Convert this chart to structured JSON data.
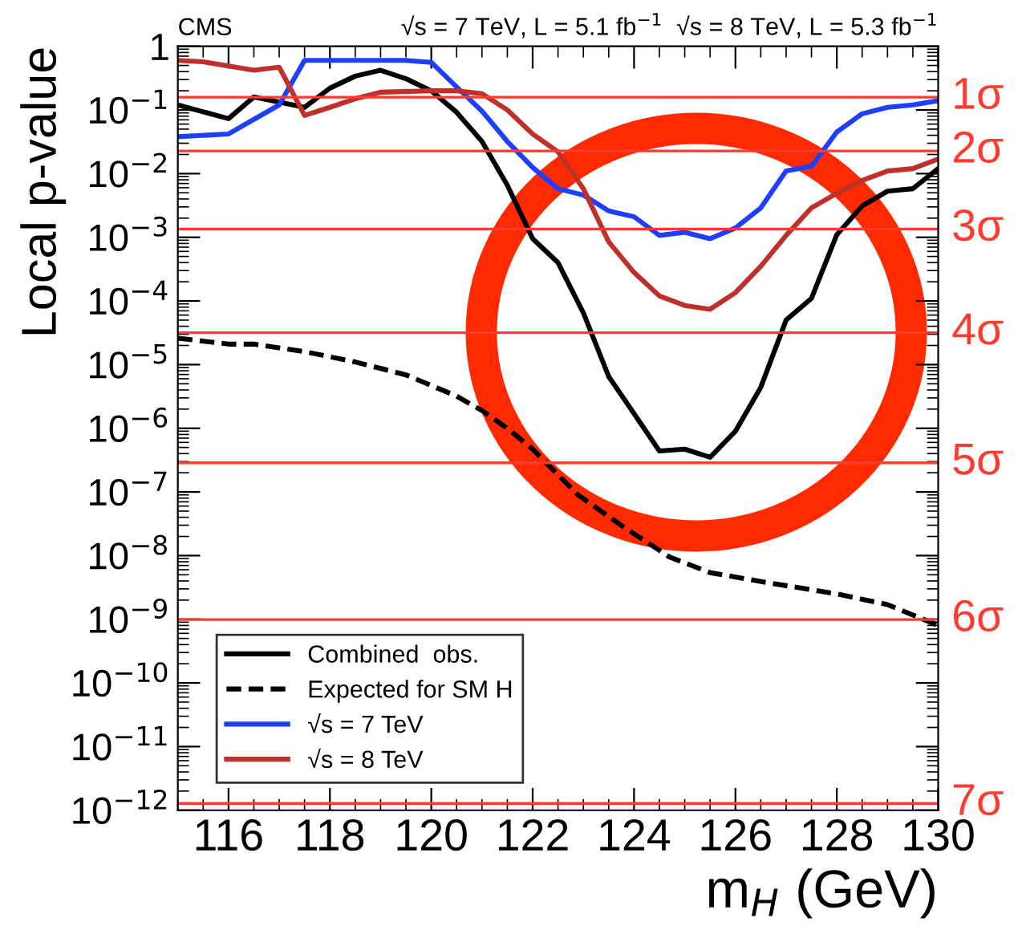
{
  "chart_data": {
    "type": "line",
    "title": "CMS",
    "subtitle": "√s = 7 TeV, L = 5.1 fb$^{−1}$  √s = 8 TeV, L = 5.3 fb$^{−1}$",
    "xlabel": "m$_{H}$ (GeV)",
    "ylabel": "Local p-value",
    "log": "y",
    "grid": false,
    "legend": "bottom left",
    "xlim": [
      115,
      130
    ],
    "xticks": [
      116,
      118,
      120,
      122,
      124,
      126,
      128,
      130
    ],
    "ylim": [
      1e-12,
      1
    ],
    "yticks": [
      1,
      {
        "value": 0.1,
        "label": "10$^{−1}$"
      },
      {
        "value": 0.01,
        "label": "10$^{−2}$"
      },
      {
        "value": 0.001,
        "label": "10$^{−3}$"
      },
      {
        "value": 0.0001,
        "label": "10$^{−4}$"
      },
      {
        "value": 1e-05,
        "label": "10$^{−5}$"
      },
      {
        "value": 1e-06,
        "label": "10$^{−6}$"
      },
      {
        "value": 1e-07,
        "label": "10$^{−7}$"
      },
      {
        "value": 1e-08,
        "label": "10$^{−8}$"
      },
      {
        "value": 1e-09,
        "label": "10$^{−9}$"
      },
      {
        "value": 1e-10,
        "label": "10$^{−10}$"
      },
      {
        "value": 1e-11,
        "label": "10$^{−11}$"
      },
      {
        "value": 1e-12,
        "label": "10$^{−12}$"
      }
    ],
    "series": [
      {
        "name": "Combined  obs.",
        "color": "#000000",
        "line_style": "solid",
        "x": [
          115,
          116,
          116.5,
          117.5,
          118,
          118.5,
          119,
          119.5,
          120,
          120.5,
          121,
          121.5,
          122,
          122.5,
          123,
          123.5,
          124,
          124.5,
          125,
          125.5,
          126,
          126.5,
          127,
          127.5,
          128,
          128.5,
          129,
          129.5,
          130
        ],
        "values": [
          0.12,
          0.073,
          0.16,
          0.11,
          0.22,
          0.34,
          0.42,
          0.31,
          0.2,
          0.092,
          0.032,
          0.0066,
          0.00095,
          0.0004,
          6.5e-05,
          6.5e-06,
          1.7e-06,
          4.4e-07,
          4.7e-07,
          3.5e-07,
          9e-07,
          4.4e-06,
          5e-05,
          0.00011,
          0.0011,
          0.0031,
          0.0053,
          0.0058,
          0.012
        ]
      },
      {
        "name": "Expected for SM H",
        "color": "#000000",
        "line_style": "dashed",
        "x": [
          115,
          116,
          116.5,
          117.5,
          118.5,
          119.5,
          120.5,
          121,
          121.5,
          122,
          122.9,
          123.8,
          124.7,
          125.5,
          126.6,
          128,
          129,
          130
        ],
        "values": [
          2.6e-05,
          2.1e-05,
          2.1e-05,
          1.6e-05,
          1.1e-05,
          6.9e-06,
          3.2e-06,
          1.9e-06,
          1e-06,
          4.7e-07,
          8.9e-08,
          2.8e-08,
          9.5e-09,
          5.4e-09,
          3.8e-09,
          2.5e-09,
          1.7e-09,
          8e-10
        ]
      },
      {
        "name": "√s = 7 TeV",
        "color": "#1f3fff",
        "line_style": "solid",
        "x": [
          115,
          116,
          117,
          117.5,
          119.5,
          120,
          120.5,
          121,
          121.5,
          122,
          122.5,
          123,
          123.5,
          124,
          124.5,
          125,
          125.5,
          126,
          126.5,
          127,
          127.5,
          128,
          128.5,
          129,
          129.5,
          130
        ],
        "values": [
          0.038,
          0.042,
          0.12,
          0.6,
          0.6,
          0.56,
          0.23,
          0.096,
          0.032,
          0.0125,
          0.0058,
          0.0046,
          0.0026,
          0.0021,
          0.00107,
          0.0012,
          0.00095,
          0.0014,
          0.0029,
          0.011,
          0.013,
          0.045,
          0.087,
          0.11,
          0.12,
          0.14
        ]
      },
      {
        "name": "√s = 8 TeV",
        "color": "#c0302a",
        "line_style": "solid",
        "x": [
          115,
          115.5,
          116.5,
          117,
          117.5,
          118,
          118.5,
          119,
          120,
          120.5,
          121,
          121.5,
          122,
          122.5,
          123,
          123.5,
          124,
          124.5,
          125,
          125.5,
          126,
          126.5,
          127,
          127.5,
          128,
          128.5,
          129,
          129.5,
          130
        ],
        "values": [
          0.6,
          0.57,
          0.42,
          0.47,
          0.082,
          0.11,
          0.15,
          0.19,
          0.2,
          0.2,
          0.18,
          0.1,
          0.042,
          0.022,
          0.0058,
          0.00085,
          0.00028,
          0.00012,
          8.5e-05,
          7.4e-05,
          0.000135,
          0.00035,
          0.00107,
          0.0029,
          0.0049,
          0.0078,
          0.011,
          0.012,
          0.017
        ]
      }
    ],
    "ref_lines": [
      {
        "axis": "y",
        "value": 0.1587,
        "label": "1σ",
        "color": "#ff3b30"
      },
      {
        "axis": "y",
        "value": 0.02275,
        "label": "2σ",
        "color": "#ff3b30"
      },
      {
        "axis": "y",
        "value": 0.00135,
        "label": "3σ",
        "color": "#ff3b30"
      },
      {
        "axis": "y",
        "value": 3.17e-05,
        "label": "4σ",
        "color": "#ff3b30"
      },
      {
        "axis": "y",
        "value": 2.87e-07,
        "label": "5σ",
        "color": "#ff3b30"
      },
      {
        "axis": "y",
        "value": 9.9e-10,
        "label": "6σ",
        "color": "#ff3b30"
      },
      {
        "axis": "y",
        "value": 1.28e-12,
        "label": "7σ",
        "color": "#ff3b30"
      }
    ]
  }
}
